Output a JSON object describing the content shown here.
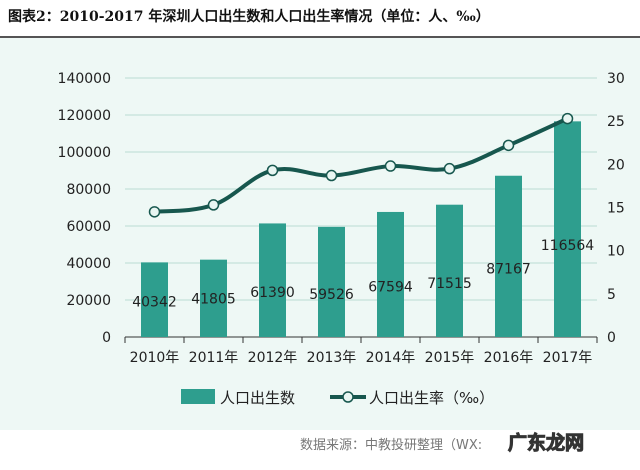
{
  "title": "图表2：2010-2017 年深圳人口出生数和人口出生率情况（单位：人、‰）",
  "source": "数据来源：中教投研整理（WX:",
  "watermark_logo": "广东龙网",
  "colors": {
    "bar": "#2e9e8e",
    "line": "#17574e",
    "background": "#eef8f5",
    "grid": "#b9dcd3"
  },
  "chart_data": {
    "type": "bar+line",
    "categories": [
      "2010年",
      "2011年",
      "2012年",
      "2013年",
      "2014年",
      "2015年",
      "2016年",
      "2017年"
    ],
    "series": [
      {
        "name": "人口出生数",
        "type": "bar",
        "axis": "left",
        "values": [
          40342,
          41805,
          61390,
          59526,
          67594,
          71515,
          87167,
          116564
        ]
      },
      {
        "name": "人口出生率（‰）",
        "type": "line",
        "axis": "right",
        "smooth": true,
        "values": [
          14.5,
          15.3,
          19.3,
          18.7,
          19.8,
          19.5,
          22.2,
          25.3
        ]
      }
    ],
    "y_left": {
      "range": [
        0,
        140000
      ],
      "ticks": [
        0,
        20000,
        40000,
        60000,
        80000,
        100000,
        120000,
        140000
      ]
    },
    "y_right": {
      "range": [
        0,
        30
      ],
      "ticks": [
        0,
        5,
        10,
        15,
        20,
        25,
        30
      ]
    },
    "grid": true,
    "legend": "bottom",
    "data_labels": true
  }
}
